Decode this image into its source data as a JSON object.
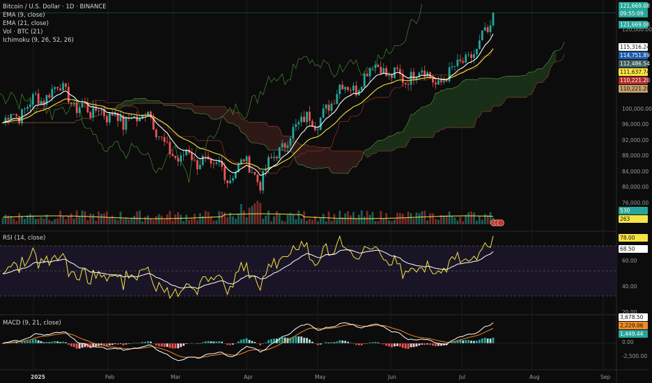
{
  "legends": {
    "main": [
      "Bitcoin / U.S. Dollar · 1D · BINANCE",
      "EMA (9, close)",
      "EMA (21, close)",
      "Vol · BTC (21)",
      "Ichimoku (9, 26, 52, 26)"
    ],
    "rsi": "RSI (14, close)",
    "macd": "MACD (9, 21, close)"
  },
  "price_axis": [
    "120,000.00",
    "100,000.00",
    "96,000.00",
    "92,000.00",
    "88,000.00",
    "84,000.00",
    "80,000.00",
    "76,000.00"
  ],
  "rsi_axis": [
    "60.00",
    "40.00",
    "20.00"
  ],
  "macd_axis": [
    "0.00",
    "-2,500.00"
  ],
  "time_axis": [
    "2025",
    "Feb",
    "Mar",
    "Apr",
    "May",
    "Jun",
    "Jul",
    "Aug",
    "Sep"
  ],
  "price_tags": [
    {
      "text": "121,669.08",
      "bg": "#26a69a",
      "fg": "#ffffff"
    },
    {
      "text": "09:55:09",
      "bg": "#26a69a",
      "fg": "#ffffff"
    },
    {
      "text": "121,669.08",
      "bg": "#26a69a",
      "fg": "#ffffff"
    },
    {
      "text": "115,316.24",
      "bg": "#ffffff",
      "fg": "#111111"
    },
    {
      "text": "114,751.89",
      "bg": "#1e5aa8",
      "fg": "#ffffff"
    },
    {
      "text": "112,486.54",
      "bg": "#3c5b59",
      "fg": "#ffffff"
    },
    {
      "text": "111,637.74",
      "bg": "#f5e542",
      "fg": "#111111"
    },
    {
      "text": "110,221.20",
      "bg": "#b02a2a",
      "fg": "#ffffff"
    },
    {
      "text": "110,221.20",
      "bg": "#c7a06a",
      "fg": "#111111"
    },
    {
      "text": "530",
      "bg": "#26a69a",
      "fg": "#ffffff"
    },
    {
      "text": "263",
      "bg": "#f5e542",
      "fg": "#111111"
    },
    {
      "text": "78.00",
      "bg": "#f5e542",
      "fg": "#111111"
    },
    {
      "text": "68.50",
      "bg": "#ffffff",
      "fg": "#111111"
    },
    {
      "text": "3,678.50",
      "bg": "#ffffff",
      "fg": "#111111"
    },
    {
      "text": "2,229.06",
      "bg": "#ef8a28",
      "fg": "#111111"
    },
    {
      "text": "1,449.44",
      "bg": "#26a69a",
      "fg": "#ffffff"
    }
  ],
  "chart_data": {
    "type": "candlestick",
    "series_closes": [
      94000,
      97000,
      95000,
      98000,
      101000,
      99000,
      102000,
      104000,
      101000,
      97000,
      99000,
      96000,
      98000,
      95000,
      97000,
      93000,
      96000,
      94000,
      98000,
      92000,
      89000,
      86000,
      84000,
      88000,
      83000,
      85000,
      82000,
      84000,
      79000,
      82000,
      85000,
      82000,
      78000,
      84000,
      86000,
      88000,
      92000,
      94000,
      96000,
      93000,
      97000,
      99000,
      104000,
      103000,
      102000,
      106000,
      109000,
      108000,
      105000,
      107000,
      104000,
      106000,
      108000,
      106000,
      103000,
      105000,
      108000,
      109000,
      110000,
      112000,
      118000,
      121669
    ],
    "colors": {
      "up": "#26a69a",
      "down": "#ef5350",
      "ema9": "#ffffff",
      "ema21": "#f5e542",
      "ichimoku_lead": "#4c7a3a",
      "rsi": "#f5e542",
      "macd": "#ffffff",
      "signal": "#ef8a28"
    }
  }
}
